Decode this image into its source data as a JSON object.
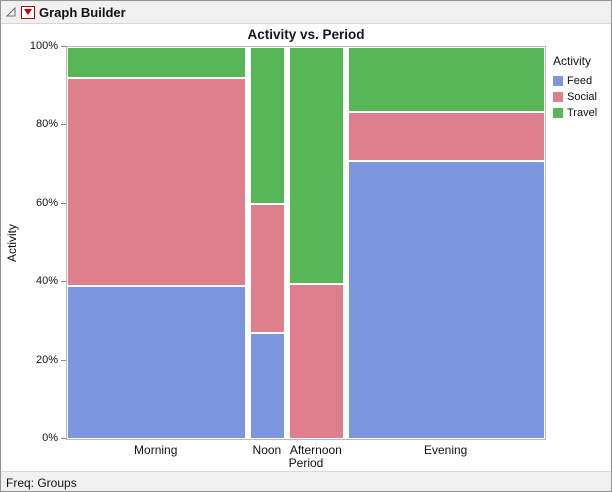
{
  "window": {
    "title": "Graph Builder"
  },
  "freq_label": "Freq: Groups",
  "chart_data": {
    "type": "mosaic",
    "title": "Activity vs. Period",
    "xlabel": "Period",
    "ylabel": "Activity",
    "ytick_labels": [
      "0%",
      "20%",
      "40%",
      "60%",
      "80%",
      "100%"
    ],
    "ylim": [
      0,
      100
    ],
    "grid": false,
    "legend_position": "right",
    "legend_title": "Activity",
    "categories": [
      "Morning",
      "Noon",
      "Afternoon",
      "Evening"
    ],
    "column_width_fractions": [
      0.385,
      0.075,
      0.118,
      0.422
    ],
    "series": [
      {
        "name": "Feed",
        "color": "#7b98de",
        "values": [
          39,
          27,
          0,
          71
        ]
      },
      {
        "name": "Social",
        "color": "#df7f8e",
        "values": [
          53,
          33,
          39.5,
          12.5
        ]
      },
      {
        "name": "Travel",
        "color": "#57b757",
        "values": [
          8,
          40,
          60.5,
          16.5
        ]
      }
    ]
  }
}
